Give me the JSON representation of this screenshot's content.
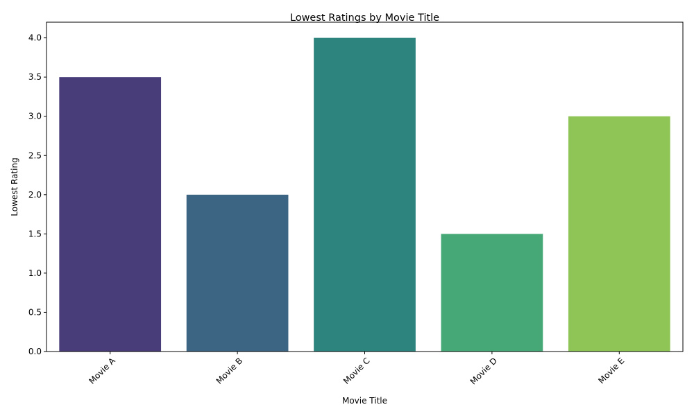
{
  "chart_data": {
    "type": "bar",
    "title": "Lowest Ratings by Movie Title",
    "xlabel": "Movie Title",
    "ylabel": "Lowest Rating",
    "categories": [
      "Movie A",
      "Movie B",
      "Movie C",
      "Movie D",
      "Movie E"
    ],
    "values": [
      3.5,
      2.0,
      4.0,
      1.5,
      3.0
    ],
    "colors": [
      "#483d79",
      "#3b6583",
      "#2d837e",
      "#46a877",
      "#8fc556"
    ],
    "ylim": [
      0,
      4.2
    ],
    "yticks": [
      0.0,
      0.5,
      1.0,
      1.5,
      2.0,
      2.5,
      3.0,
      3.5,
      4.0
    ],
    "ytick_labels": [
      "0.0",
      "0.5",
      "1.0",
      "1.5",
      "2.0",
      "2.5",
      "3.0",
      "3.5",
      "4.0"
    ],
    "xtick_rotation_deg": 45,
    "grid": false,
    "legend": "none"
  }
}
